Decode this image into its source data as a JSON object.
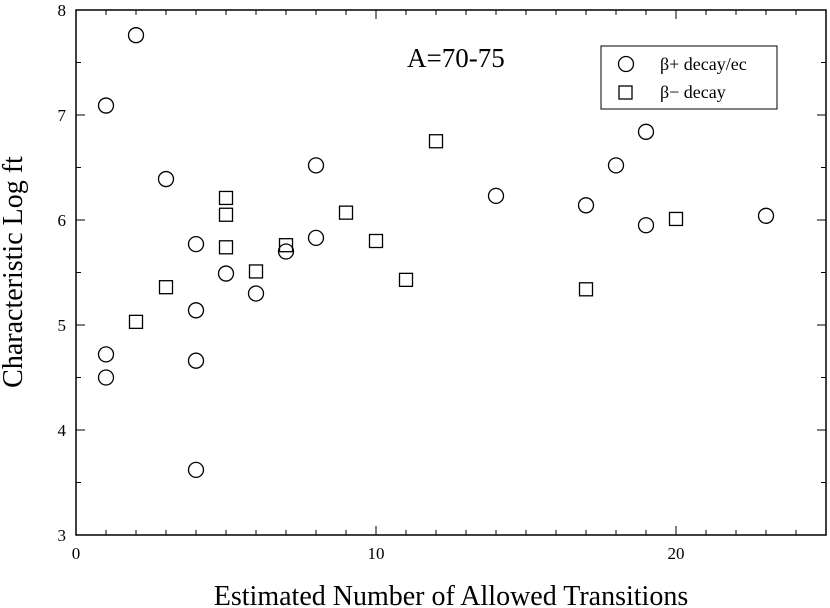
{
  "chart_data": {
    "type": "scatter",
    "title": "",
    "annotation": "A=70-75",
    "xlabel": "Estimated Number of Allowed Transitions",
    "ylabel": "Characteristic Log ft",
    "xlim": [
      0,
      25
    ],
    "ylim": [
      3,
      8
    ],
    "x_ticks": [
      0,
      10,
      20
    ],
    "y_ticks": [
      3,
      4,
      5,
      6,
      7,
      8
    ],
    "grid": false,
    "legend_position": "top-right",
    "series": [
      {
        "name": "β+ decay/ec",
        "marker": "circle",
        "color": "#000000",
        "points": [
          {
            "x": 1,
            "y": 7.09
          },
          {
            "x": 1,
            "y": 4.72
          },
          {
            "x": 1,
            "y": 4.5
          },
          {
            "x": 2,
            "y": 7.76
          },
          {
            "x": 3,
            "y": 6.39
          },
          {
            "x": 4,
            "y": 5.77
          },
          {
            "x": 4,
            "y": 5.14
          },
          {
            "x": 4,
            "y": 4.66
          },
          {
            "x": 4,
            "y": 3.62
          },
          {
            "x": 5,
            "y": 5.49
          },
          {
            "x": 6,
            "y": 5.3
          },
          {
            "x": 7,
            "y": 5.7
          },
          {
            "x": 8,
            "y": 6.52
          },
          {
            "x": 8,
            "y": 5.83
          },
          {
            "x": 14,
            "y": 6.23
          },
          {
            "x": 17,
            "y": 6.14
          },
          {
            "x": 18,
            "y": 6.52
          },
          {
            "x": 19,
            "y": 6.84
          },
          {
            "x": 19,
            "y": 5.95
          },
          {
            "x": 23,
            "y": 6.04
          }
        ]
      },
      {
        "name": "β− decay",
        "marker": "square",
        "color": "#000000",
        "points": [
          {
            "x": 2,
            "y": 5.03
          },
          {
            "x": 3,
            "y": 5.36
          },
          {
            "x": 5,
            "y": 6.21
          },
          {
            "x": 5,
            "y": 6.05
          },
          {
            "x": 5,
            "y": 5.74
          },
          {
            "x": 6,
            "y": 5.51
          },
          {
            "x": 7,
            "y": 5.76
          },
          {
            "x": 9,
            "y": 6.07
          },
          {
            "x": 10,
            "y": 5.8
          },
          {
            "x": 11,
            "y": 5.43
          },
          {
            "x": 12,
            "y": 6.75
          },
          {
            "x": 17,
            "y": 5.34
          },
          {
            "x": 20,
            "y": 6.01
          }
        ]
      }
    ]
  }
}
